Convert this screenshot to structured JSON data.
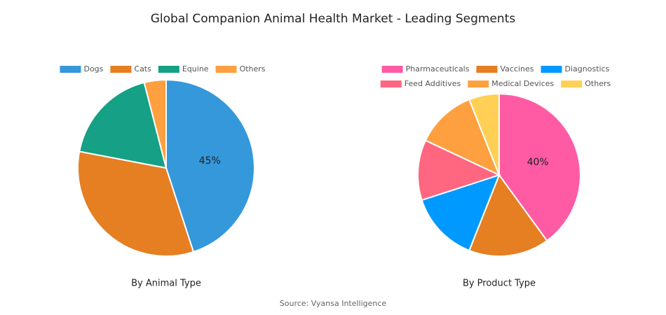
{
  "title": "Global Companion Animal Health Market - Leading Segments",
  "source": "Source: Vyansa Intelligence",
  "chart_data": [
    {
      "type": "pie",
      "title": "By Animal Type",
      "categories": [
        "Dogs",
        "Cats",
        "Equine",
        "Others"
      ],
      "values": [
        45,
        33,
        18,
        4
      ],
      "value_labels": [
        "45%",
        null,
        null,
        null
      ],
      "colors": [
        "#3498db",
        "#e67e22",
        "#16a085",
        "#ffa040"
      ]
    },
    {
      "type": "pie",
      "title": "By Product Type",
      "categories": [
        "Pharmaceuticals",
        "Vaccines",
        "Diagnostics",
        "Feed Additives",
        "Medical Devices",
        "Others"
      ],
      "values": [
        40,
        16,
        14,
        12,
        12,
        6
      ],
      "value_labels": [
        "40%",
        null,
        null,
        null,
        null,
        null
      ],
      "colors": [
        "#ff5ba5",
        "#e67e22",
        "#0099ff",
        "#ff6680",
        "#ffa040",
        "#ffd055"
      ]
    }
  ]
}
